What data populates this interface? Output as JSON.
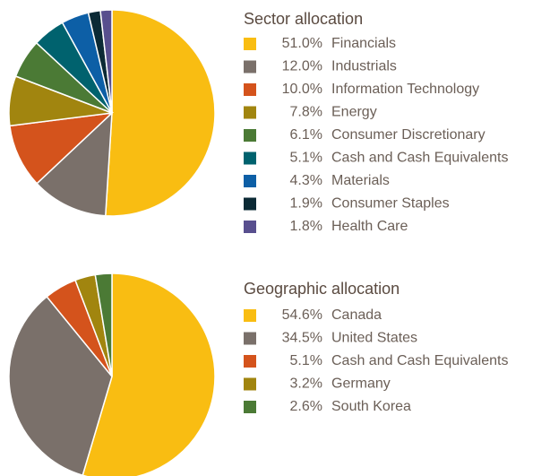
{
  "chart_data": [
    {
      "type": "pie",
      "title": "Sector allocation",
      "categories": [
        "Financials",
        "Industrials",
        "Information Technology",
        "Energy",
        "Consumer Discretionary",
        "Cash and Cash Equivalents",
        "Materials",
        "Consumer Staples",
        "Health Care"
      ],
      "values": [
        51.0,
        12.0,
        10.0,
        7.8,
        6.1,
        5.1,
        4.3,
        1.9,
        1.8
      ],
      "value_labels": [
        "51.0%",
        "12.0%",
        "10.0%",
        "7.8%",
        "6.1%",
        "5.1%",
        "4.3%",
        "1.9%",
        "1.8%"
      ],
      "colors": [
        "#f9bd12",
        "#7a706a",
        "#d4531c",
        "#a1850f",
        "#4b7a35",
        "#00626e",
        "#0d5fa6",
        "#0b2a35",
        "#584f8e"
      ]
    },
    {
      "type": "pie",
      "title": "Geographic allocation",
      "categories": [
        "Canada",
        "United States",
        "Cash and Cash Equivalents",
        "Germany",
        "South Korea"
      ],
      "values": [
        54.6,
        34.5,
        5.1,
        3.2,
        2.6
      ],
      "value_labels": [
        "54.6%",
        "34.5%",
        "5.1%",
        "3.2%",
        "2.6%"
      ],
      "colors": [
        "#f9bd12",
        "#7a706a",
        "#d4531c",
        "#a1850f",
        "#4b7a35"
      ]
    }
  ]
}
